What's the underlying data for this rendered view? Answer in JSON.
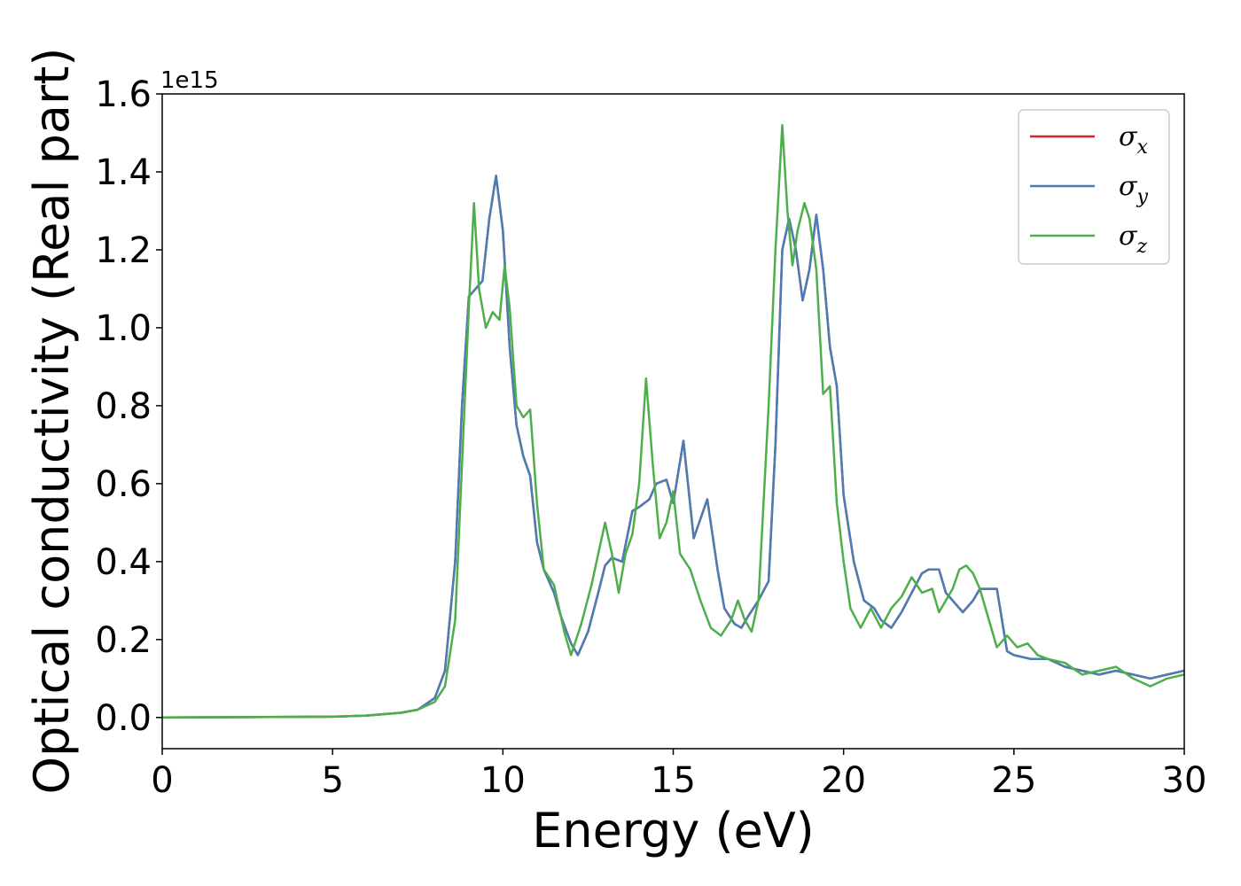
{
  "chart_data": {
    "type": "line",
    "xlabel": "Energy (eV)",
    "ylabel": "Optical conductivity (Real part)",
    "y_offset_label": "1e15",
    "xlim": [
      0,
      30
    ],
    "ylim": [
      -0.08,
      1.6
    ],
    "x_ticks": [
      0,
      5,
      10,
      15,
      20,
      25,
      30
    ],
    "x_tick_labels": [
      "0",
      "5",
      "10",
      "15",
      "20",
      "25",
      "30"
    ],
    "y_ticks": [
      0.0,
      0.2,
      0.4,
      0.6,
      0.8,
      1.0,
      1.2,
      1.4,
      1.6
    ],
    "y_tick_labels": [
      "0.0",
      "0.2",
      "0.4",
      "0.6",
      "0.8",
      "1.0",
      "1.2",
      "1.4",
      "1.6"
    ],
    "grid": false,
    "legend_position": "top-right",
    "series": [
      {
        "name": "σx",
        "legend_base": "σ",
        "legend_sub": "x",
        "color": "#d62728",
        "x": [
          0,
          5,
          6,
          7,
          7.5,
          8,
          8.3,
          8.6,
          8.8,
          9.0,
          9.2,
          9.4,
          9.6,
          9.8,
          10.0,
          10.2,
          10.4,
          10.6,
          10.8,
          11.0,
          11.2,
          11.5,
          11.7,
          12.0,
          12.2,
          12.5,
          12.8,
          13.0,
          13.2,
          13.5,
          13.8,
          14.0,
          14.3,
          14.5,
          14.8,
          15.0,
          15.3,
          15.6,
          16.0,
          16.3,
          16.5,
          16.8,
          17.0,
          17.2,
          17.5,
          17.8,
          18.0,
          18.2,
          18.4,
          18.6,
          18.8,
          19.0,
          19.2,
          19.4,
          19.6,
          19.8,
          20.0,
          20.3,
          20.6,
          20.9,
          21.1,
          21.4,
          21.7,
          22.0,
          22.3,
          22.5,
          22.8,
          23.0,
          23.2,
          23.5,
          23.8,
          24.0,
          24.2,
          24.5,
          24.8,
          25.0,
          25.5,
          26.0,
          26.5,
          27.0,
          27.5,
          28.0,
          28.5,
          29.0,
          29.5,
          30.0
        ],
        "y": [
          0.0,
          0.002,
          0.005,
          0.012,
          0.02,
          0.05,
          0.12,
          0.4,
          0.8,
          1.08,
          1.1,
          1.12,
          1.28,
          1.39,
          1.25,
          0.95,
          0.75,
          0.67,
          0.62,
          0.45,
          0.38,
          0.32,
          0.26,
          0.19,
          0.16,
          0.22,
          0.32,
          0.39,
          0.41,
          0.4,
          0.53,
          0.54,
          0.56,
          0.6,
          0.61,
          0.55,
          0.71,
          0.46,
          0.56,
          0.38,
          0.28,
          0.24,
          0.23,
          0.26,
          0.3,
          0.35,
          0.7,
          1.2,
          1.28,
          1.2,
          1.07,
          1.15,
          1.29,
          1.15,
          0.95,
          0.85,
          0.57,
          0.4,
          0.3,
          0.28,
          0.25,
          0.23,
          0.27,
          0.32,
          0.37,
          0.38,
          0.38,
          0.32,
          0.3,
          0.27,
          0.3,
          0.33,
          0.33,
          0.33,
          0.17,
          0.16,
          0.15,
          0.15,
          0.13,
          0.12,
          0.11,
          0.12,
          0.11,
          0.1,
          0.11,
          0.12
        ]
      },
      {
        "name": "σy",
        "legend_base": "σ",
        "legend_sub": "y",
        "color": "#4a7db6",
        "x": [
          0,
          5,
          6,
          7,
          7.5,
          8,
          8.3,
          8.6,
          8.8,
          9.0,
          9.2,
          9.4,
          9.6,
          9.8,
          10.0,
          10.2,
          10.4,
          10.6,
          10.8,
          11.0,
          11.2,
          11.5,
          11.7,
          12.0,
          12.2,
          12.5,
          12.8,
          13.0,
          13.2,
          13.5,
          13.8,
          14.0,
          14.3,
          14.5,
          14.8,
          15.0,
          15.3,
          15.6,
          16.0,
          16.3,
          16.5,
          16.8,
          17.0,
          17.2,
          17.5,
          17.8,
          18.0,
          18.2,
          18.4,
          18.6,
          18.8,
          19.0,
          19.2,
          19.4,
          19.6,
          19.8,
          20.0,
          20.3,
          20.6,
          20.9,
          21.1,
          21.4,
          21.7,
          22.0,
          22.3,
          22.5,
          22.8,
          23.0,
          23.2,
          23.5,
          23.8,
          24.0,
          24.2,
          24.5,
          24.8,
          25.0,
          25.5,
          26.0,
          26.5,
          27.0,
          27.5,
          28.0,
          28.5,
          29.0,
          29.5,
          30.0
        ],
        "y": [
          0.0,
          0.002,
          0.005,
          0.012,
          0.02,
          0.05,
          0.12,
          0.4,
          0.8,
          1.08,
          1.1,
          1.12,
          1.28,
          1.39,
          1.25,
          0.95,
          0.75,
          0.67,
          0.62,
          0.45,
          0.38,
          0.32,
          0.26,
          0.19,
          0.16,
          0.22,
          0.32,
          0.39,
          0.41,
          0.4,
          0.53,
          0.54,
          0.56,
          0.6,
          0.61,
          0.55,
          0.71,
          0.46,
          0.56,
          0.38,
          0.28,
          0.24,
          0.23,
          0.26,
          0.3,
          0.35,
          0.7,
          1.2,
          1.28,
          1.2,
          1.07,
          1.15,
          1.29,
          1.15,
          0.95,
          0.85,
          0.57,
          0.4,
          0.3,
          0.28,
          0.25,
          0.23,
          0.27,
          0.32,
          0.37,
          0.38,
          0.38,
          0.32,
          0.3,
          0.27,
          0.3,
          0.33,
          0.33,
          0.33,
          0.17,
          0.16,
          0.15,
          0.15,
          0.13,
          0.12,
          0.11,
          0.12,
          0.11,
          0.1,
          0.11,
          0.12
        ]
      },
      {
        "name": "σz",
        "legend_base": "σ",
        "legend_sub": "z",
        "color": "#4daf4a",
        "x": [
          0,
          5,
          6,
          7,
          7.5,
          8,
          8.3,
          8.6,
          8.8,
          9.0,
          9.15,
          9.3,
          9.5,
          9.7,
          9.9,
          10.05,
          10.2,
          10.4,
          10.6,
          10.8,
          11.0,
          11.2,
          11.5,
          11.8,
          12.0,
          12.3,
          12.6,
          12.8,
          13.0,
          13.2,
          13.4,
          13.6,
          13.8,
          14.0,
          14.2,
          14.4,
          14.6,
          14.8,
          15.0,
          15.2,
          15.5,
          15.8,
          16.1,
          16.4,
          16.7,
          16.9,
          17.1,
          17.3,
          17.5,
          17.8,
          18.0,
          18.2,
          18.35,
          18.5,
          18.65,
          18.85,
          19.0,
          19.2,
          19.4,
          19.6,
          19.8,
          20.0,
          20.2,
          20.5,
          20.8,
          21.1,
          21.4,
          21.7,
          22.0,
          22.3,
          22.6,
          22.8,
          23.0,
          23.2,
          23.4,
          23.6,
          23.8,
          24.0,
          24.2,
          24.5,
          24.8,
          25.1,
          25.4,
          25.7,
          26.0,
          26.5,
          27.0,
          27.5,
          28.0,
          28.5,
          29.0,
          29.5,
          30.0
        ],
        "y": [
          0.0,
          0.002,
          0.005,
          0.012,
          0.02,
          0.04,
          0.08,
          0.25,
          0.65,
          1.05,
          1.32,
          1.1,
          1.0,
          1.04,
          1.02,
          1.16,
          1.05,
          0.8,
          0.77,
          0.79,
          0.55,
          0.38,
          0.34,
          0.22,
          0.16,
          0.24,
          0.34,
          0.42,
          0.5,
          0.42,
          0.32,
          0.42,
          0.47,
          0.6,
          0.87,
          0.65,
          0.46,
          0.5,
          0.58,
          0.42,
          0.38,
          0.3,
          0.23,
          0.21,
          0.25,
          0.3,
          0.25,
          0.22,
          0.3,
          0.8,
          1.2,
          1.52,
          1.3,
          1.16,
          1.25,
          1.32,
          1.28,
          1.15,
          0.83,
          0.85,
          0.55,
          0.4,
          0.28,
          0.23,
          0.28,
          0.23,
          0.28,
          0.31,
          0.36,
          0.32,
          0.33,
          0.27,
          0.3,
          0.33,
          0.38,
          0.39,
          0.37,
          0.33,
          0.27,
          0.18,
          0.21,
          0.18,
          0.19,
          0.16,
          0.15,
          0.14,
          0.11,
          0.12,
          0.13,
          0.1,
          0.08,
          0.1,
          0.11
        ]
      }
    ]
  }
}
